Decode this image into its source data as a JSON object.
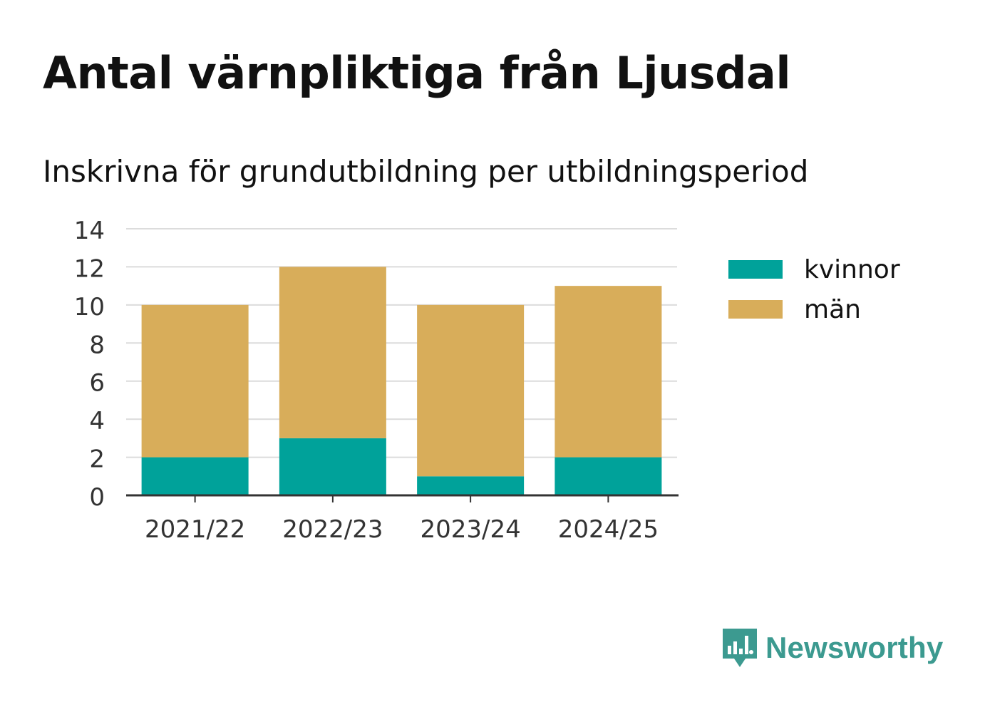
{
  "title": "Antal värnpliktiga från Ljusdal",
  "subtitle": "Inskrivna för grundutbildning per utbildningsperiod",
  "brand": {
    "name": "Newsworthy",
    "color": "#3c9a90",
    "icon": "newsworthy-logo-icon"
  },
  "chart_data": {
    "type": "bar",
    "stacked": true,
    "categories": [
      "2021/22",
      "2022/23",
      "2023/24",
      "2024/25"
    ],
    "series": [
      {
        "name": "kvinnor",
        "values": [
          2,
          3,
          1,
          2
        ],
        "color": "#00a29a"
      },
      {
        "name": "män",
        "values": [
          8,
          9,
          9,
          9
        ],
        "color": "#d8ad5a"
      }
    ],
    "ylim": [
      0,
      14
    ],
    "yticks": [
      0,
      2,
      4,
      6,
      8,
      10,
      12,
      14
    ],
    "grid": true,
    "legend": "right"
  }
}
